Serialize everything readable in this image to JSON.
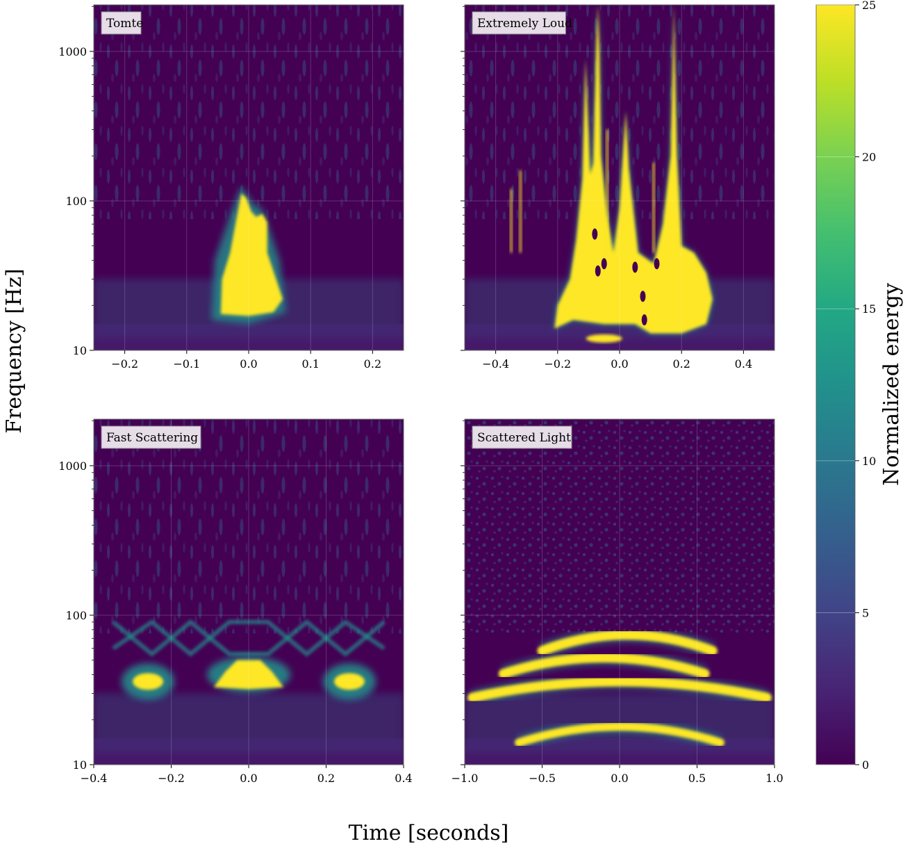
{
  "figure": {
    "ylabel": "Frequency [Hz]",
    "xlabel": "Time [seconds]",
    "colorbar": {
      "label": "Normalized energy",
      "range": [
        0,
        25
      ],
      "ticks": [
        "0",
        "5",
        "10",
        "15",
        "20",
        "25"
      ],
      "colormap": "viridis"
    }
  },
  "colors": {
    "background_low": "#440154",
    "mid": "#21918c",
    "high": "#fde725",
    "label_box": "#e6dde8"
  },
  "chart_data": [
    {
      "type": "heatmap",
      "title": "Tomte",
      "x_range": [
        -0.25,
        0.25
      ],
      "x_ticks": [
        -0.2,
        -0.1,
        0.0,
        0.1,
        0.2
      ],
      "x_tick_labels": [
        "−0.2",
        "−0.1",
        "0.0",
        "0.1",
        "0.2"
      ],
      "y_scale": "log",
      "y_range": [
        10,
        2048
      ],
      "y_ticks": [
        10,
        100,
        1000
      ],
      "y_tick_labels": [
        "10",
        "100",
        "1000"
      ],
      "features": [
        {
          "shape": "blob",
          "t_start": -0.05,
          "t_end": 0.055,
          "f_low": 17,
          "f_high": 115,
          "energy": 25
        }
      ]
    },
    {
      "type": "heatmap",
      "title": "Extremely Loud",
      "x_range": [
        -0.5,
        0.5
      ],
      "x_ticks": [
        -0.4,
        -0.2,
        0.0,
        0.2,
        0.4
      ],
      "x_tick_labels": [
        "−0.4",
        "−0.2",
        "0.0",
        "0.2",
        "0.4"
      ],
      "y_scale": "log",
      "y_range": [
        10,
        2048
      ],
      "y_ticks": [
        10,
        100,
        1000
      ],
      "y_tick_labels": [
        "",
        "",
        ""
      ],
      "features": [
        {
          "shape": "blob",
          "t_start": -0.22,
          "t_end": 0.3,
          "f_low": 11,
          "f_high": 2048,
          "energy": 25
        }
      ]
    },
    {
      "type": "heatmap",
      "title": "Fast Scattering",
      "x_range": [
        -0.4,
        0.4
      ],
      "x_ticks": [
        -0.4,
        -0.2,
        0.0,
        0.2,
        0.4
      ],
      "x_tick_labels": [
        "−0.4",
        "−0.2",
        "0.0",
        "0.2",
        "0.4"
      ],
      "y_scale": "log",
      "y_range": [
        10,
        2048
      ],
      "y_ticks": [
        10,
        100,
        1000
      ],
      "y_tick_labels": [
        "10",
        "100",
        "1000"
      ],
      "features": [
        {
          "shape": "blob",
          "t_center": -0.26,
          "f_center": 36,
          "energy": 25
        },
        {
          "shape": "blob",
          "t_center": 0.0,
          "f_center": 40,
          "energy": 25
        },
        {
          "shape": "blob",
          "t_center": 0.26,
          "f_center": 36,
          "energy": 25
        }
      ]
    },
    {
      "type": "heatmap",
      "title": "Scattered Light",
      "x_range": [
        -1.0,
        1.0
      ],
      "x_ticks": [
        -1.0,
        -0.5,
        0.0,
        0.5,
        1.0
      ],
      "x_tick_labels": [
        "−1.0",
        "−0.5",
        "0.0",
        "0.5",
        "1.0"
      ],
      "y_scale": "log",
      "y_range": [
        10,
        2048
      ],
      "y_ticks": [
        10,
        100,
        1000
      ],
      "y_tick_labels": [
        "",
        "",
        ""
      ],
      "features": [
        {
          "shape": "arch",
          "t_start": -0.65,
          "t_end": 0.65,
          "f_peak": 18,
          "energy": 25
        },
        {
          "shape": "arch",
          "t_start": -0.95,
          "t_end": 0.95,
          "f_peak": 36,
          "energy": 25
        },
        {
          "shape": "arch",
          "t_start": -0.75,
          "t_end": 0.55,
          "f_peak": 52,
          "energy": 25
        },
        {
          "shape": "arch",
          "t_start": -0.5,
          "t_end": 0.6,
          "f_peak": 74,
          "energy": 25
        }
      ]
    }
  ]
}
